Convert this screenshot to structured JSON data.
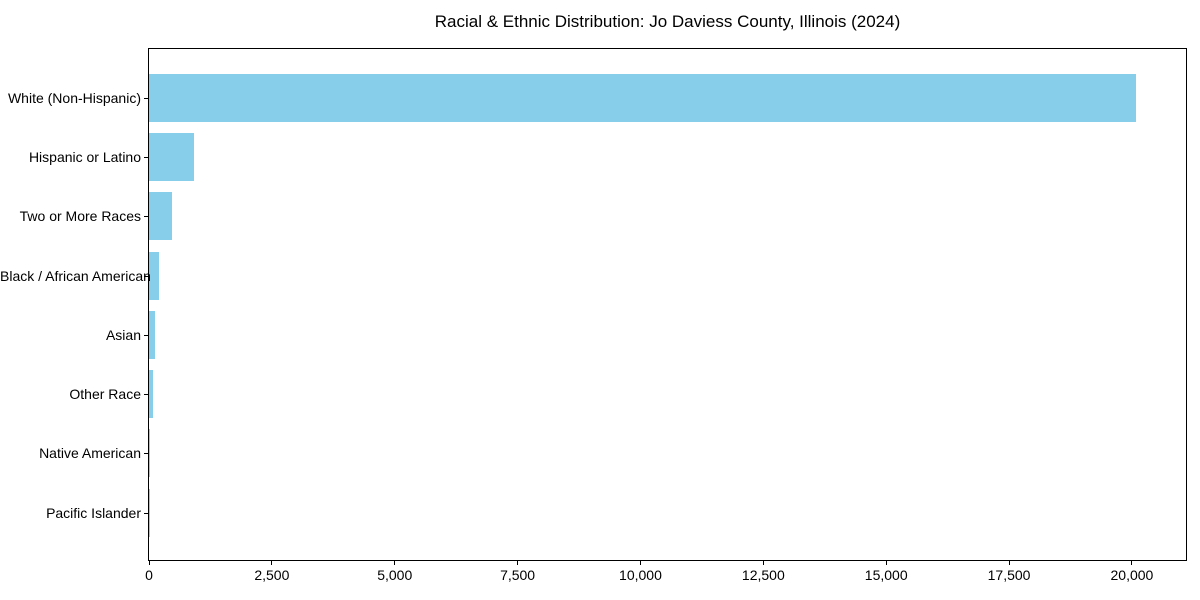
{
  "chart_data": {
    "type": "bar",
    "orientation": "horizontal",
    "title": "Racial & Ethnic Distribution: Jo Daviess County, Illinois (2024)",
    "xlabel": "",
    "ylabel": "",
    "categories": [
      "White (Non-Hispanic)",
      "Hispanic or Latino",
      "Two or More Races",
      "Black / African American",
      "Asian",
      "Other Race",
      "Native American",
      "Pacific Islander"
    ],
    "values": [
      20090,
      910,
      470,
      200,
      118,
      77,
      30,
      5
    ],
    "xlim": [
      0,
      21100
    ],
    "x_ticks": [
      0,
      2500,
      5000,
      7500,
      10000,
      12500,
      15000,
      17500,
      20000
    ],
    "x_tick_labels": [
      "0",
      "2,500",
      "5,000",
      "7,500",
      "10,000",
      "12,500",
      "15,000",
      "17,500",
      "20,000"
    ],
    "bar_color": "#87CEEB",
    "background_color": "#ffffff",
    "spine_color": "#000000",
    "grid": false,
    "legend": null
  }
}
